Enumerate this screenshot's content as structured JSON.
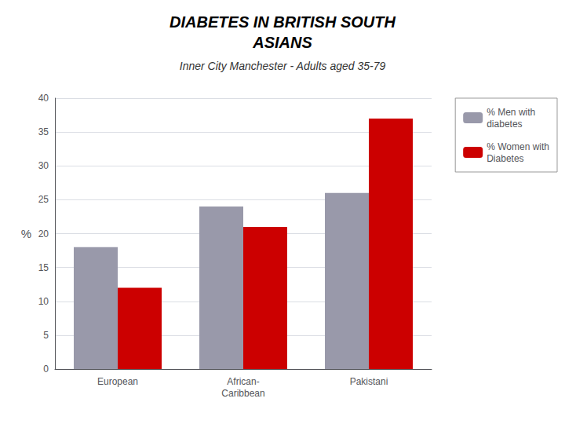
{
  "chart_data": {
    "type": "bar",
    "title": "DIABETES IN BRITISH SOUTH\nASIANS",
    "subtitle": "Inner City Manchester - Adults aged 35-79",
    "categories": [
      "European",
      "African-\nCaribbean",
      "Pakistani"
    ],
    "series": [
      {
        "name": "% Men with\ndiabetes",
        "color": "#9999aa",
        "values": [
          18,
          24,
          26
        ]
      },
      {
        "name": "% Women with\nDiabetes",
        "color": "#cc0000",
        "values": [
          12,
          21,
          37
        ]
      }
    ],
    "ylabel": "%",
    "ylim": [
      0,
      40
    ],
    "yticks": [
      0,
      5,
      10,
      15,
      20,
      25,
      30,
      35,
      40
    ],
    "grid": true,
    "legend": "right"
  }
}
